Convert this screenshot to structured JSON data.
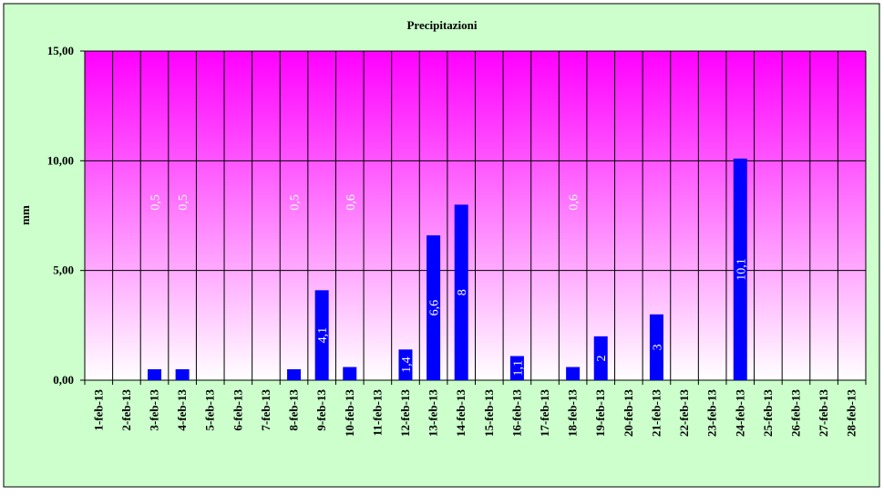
{
  "chart_data": {
    "type": "bar",
    "title": "Precipitazioni",
    "y_label": "mm",
    "categories": [
      "1-feb-13",
      "2-feb-13",
      "3-feb-13",
      "4-feb-13",
      "5-feb-13",
      "6-feb-13",
      "7-feb-13",
      "8-feb-13",
      "9-feb-13",
      "10-feb-13",
      "11-feb-13",
      "12-feb-13",
      "13-feb-13",
      "14-feb-13",
      "15-feb-13",
      "16-feb-13",
      "17-feb-13",
      "18-feb-13",
      "19-feb-13",
      "20-feb-13",
      "21-feb-13",
      "22-feb-13",
      "23-feb-13",
      "24-feb-13",
      "25-feb-13",
      "26-feb-13",
      "27-feb-13",
      "28-feb-13"
    ],
    "values": [
      0,
      0,
      0.5,
      0.5,
      0,
      0,
      0,
      0.5,
      4.1,
      0.6,
      0,
      1.4,
      6.6,
      8,
      0,
      1.1,
      0,
      0.6,
      2,
      0,
      3,
      0,
      0,
      10.1,
      0,
      0,
      0,
      0
    ],
    "value_labels": [
      null,
      null,
      "0,5",
      "0,5",
      null,
      null,
      null,
      "0,5",
      "4,1",
      "0,6",
      null,
      "1,4",
      "6,6",
      "8",
      null,
      "1,1",
      null,
      "0,6",
      "2",
      null,
      "3",
      null,
      null,
      "10,1",
      null,
      null,
      null,
      null
    ],
    "color": "#0000ff",
    "ylim": [
      0,
      15
    ],
    "yticks": [
      {
        "value": 0,
        "label": "0,00"
      },
      {
        "value": 5,
        "label": "5,00"
      },
      {
        "value": 10,
        "label": "10,00"
      },
      {
        "value": 15,
        "label": "15,00"
      }
    ],
    "grid": true
  }
}
